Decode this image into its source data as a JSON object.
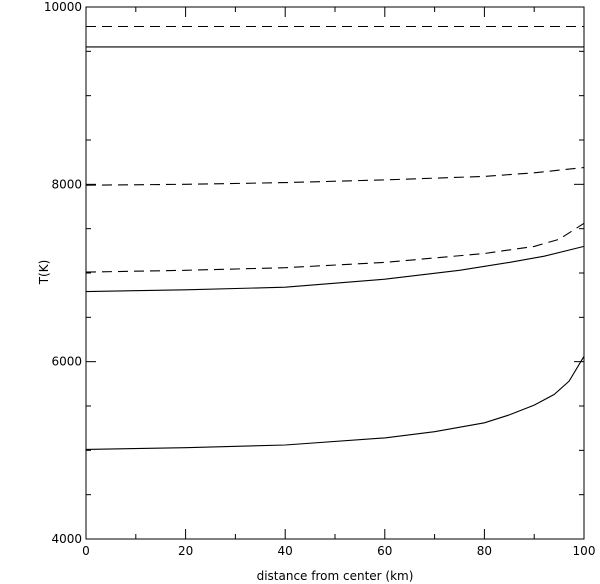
{
  "chart_data": {
    "type": "line",
    "title": "",
    "xlabel": "distance from center (km)",
    "ylabel": "T(K)",
    "xlim": [
      0,
      100
    ],
    "ylim": [
      4000,
      10000
    ],
    "x_ticks": [
      0,
      20,
      40,
      60,
      80,
      100
    ],
    "y_ticks": [
      4000,
      6000,
      8000,
      10000
    ],
    "x_minor_step": 10,
    "y_minor_step": 500,
    "grid": false,
    "legend": "none",
    "series": [
      {
        "style": "dashed",
        "x": [
          0,
          100
        ],
        "y": [
          9780,
          9780
        ]
      },
      {
        "style": "solid",
        "x": [
          0,
          100
        ],
        "y": [
          9550,
          9550
        ]
      },
      {
        "style": "dashed",
        "x": [
          0,
          20,
          40,
          60,
          80,
          90,
          100
        ],
        "y": [
          7990,
          8000,
          8020,
          8050,
          8090,
          8130,
          8190
        ]
      },
      {
        "style": "dashed",
        "x": [
          0,
          20,
          40,
          60,
          80,
          90,
          95,
          100
        ],
        "y": [
          7010,
          7030,
          7060,
          7120,
          7220,
          7300,
          7380,
          7560
        ]
      },
      {
        "style": "solid",
        "x": [
          0,
          20,
          40,
          60,
          75,
          85,
          92,
          100
        ],
        "y": [
          6790,
          6810,
          6840,
          6930,
          7030,
          7120,
          7190,
          7300
        ]
      },
      {
        "style": "solid",
        "x": [
          0,
          20,
          40,
          60,
          70,
          80,
          85,
          90,
          94,
          97,
          100
        ],
        "y": [
          5010,
          5030,
          5060,
          5140,
          5210,
          5310,
          5400,
          5510,
          5630,
          5780,
          6060
        ]
      }
    ]
  }
}
